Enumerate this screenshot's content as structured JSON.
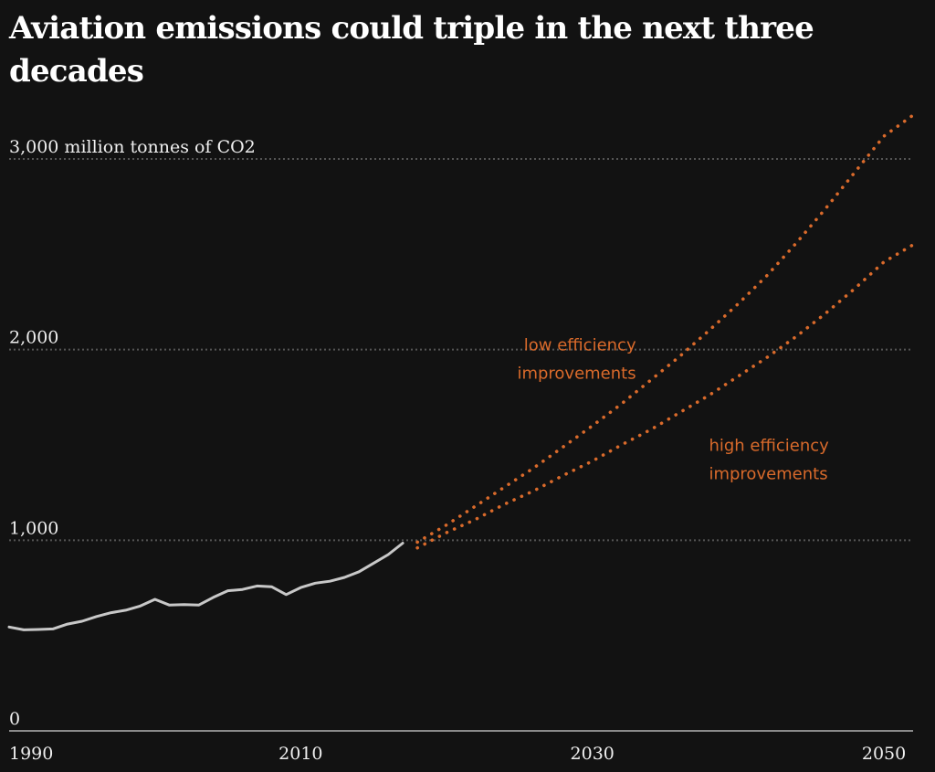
{
  "title": "Aviation emissions could triple in the next three decades",
  "chart_data": {
    "type": "line",
    "title": "Aviation emissions could triple in the next three decades",
    "ylabel": "million tonnes of CO2",
    "xlim": [
      1990,
      2052
    ],
    "ylim": [
      0,
      3000
    ],
    "y_ticks": [
      {
        "value": 0,
        "label": "0"
      },
      {
        "value": 1000,
        "label": "1,000"
      },
      {
        "value": 2000,
        "label": "2,000"
      },
      {
        "value": 3000,
        "label": "3,000 million tonnes of CO2"
      }
    ],
    "x_ticks": [
      {
        "value": 1990,
        "label": "1990"
      },
      {
        "value": 2010,
        "label": "2010"
      },
      {
        "value": 2030,
        "label": "2030"
      },
      {
        "value": 2050,
        "label": "2050"
      }
    ],
    "grid": true,
    "colors": {
      "background": "#121212",
      "historical": "#c8c8c8",
      "projection": "#d96a2b",
      "grid": "#555555"
    },
    "series": [
      {
        "key": "historical",
        "style": "solid",
        "color": "#c8c8c8",
        "x": [
          1990,
          1991,
          1992,
          1993,
          1994,
          1995,
          1996,
          1997,
          1998,
          1999,
          2000,
          2001,
          2002,
          2003,
          2004,
          2005,
          2006,
          2007,
          2008,
          2009,
          2010,
          2011,
          2012,
          2013,
          2014,
          2015,
          2016,
          2017
        ],
        "y": [
          545,
          530,
          532,
          535,
          560,
          575,
          600,
          620,
          633,
          655,
          690,
          660,
          663,
          660,
          700,
          735,
          742,
          760,
          756,
          715,
          752,
          775,
          785,
          805,
          835,
          880,
          925,
          985
        ]
      },
      {
        "name": "low efficiency improvements",
        "style": "dotted",
        "color": "#d96a2b",
        "x": [
          2018,
          2020,
          2022,
          2024,
          2026,
          2028,
          2030,
          2032,
          2034,
          2036,
          2038,
          2040,
          2042,
          2044,
          2046,
          2048,
          2050,
          2052
        ],
        "y": [
          990,
          1080,
          1180,
          1280,
          1380,
          1490,
          1600,
          1715,
          1840,
          1965,
          2100,
          2240,
          2390,
          2560,
          2740,
          2930,
          3120,
          3230
        ]
      },
      {
        "name": "high efficiency improvements",
        "style": "dotted",
        "color": "#d96a2b",
        "x": [
          2018,
          2020,
          2022,
          2024,
          2026,
          2028,
          2030,
          2032,
          2034,
          2036,
          2038,
          2040,
          2042,
          2044,
          2046,
          2048,
          2050,
          2052
        ],
        "y": [
          960,
          1040,
          1110,
          1190,
          1260,
          1340,
          1415,
          1500,
          1580,
          1670,
          1760,
          1860,
          1960,
          2070,
          2190,
          2320,
          2460,
          2550
        ]
      }
    ],
    "annotations": [
      {
        "text_lines": [
          "low efficiency",
          "improvements"
        ],
        "x": 2033,
        "y": 1995,
        "anchor": "end"
      },
      {
        "text_lines": [
          "high efficiency",
          "improvements"
        ],
        "x": 2038,
        "y": 1470,
        "anchor": "start"
      }
    ]
  }
}
